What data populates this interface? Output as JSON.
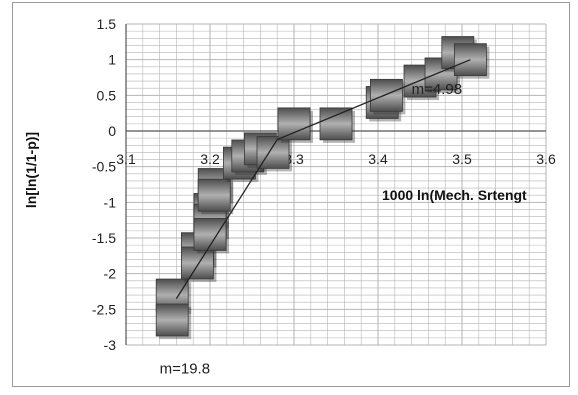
{
  "chart_data": {
    "type": "scatter",
    "xlabel": "1000 ln(Mech. Srtengt",
    "ylabel": "ln[ln(1/1-p)]",
    "xlim": [
      3.1,
      3.6
    ],
    "ylim": [
      -3,
      1.5
    ],
    "xticks": [
      "3.1",
      "3.2",
      "3.3",
      "3.4",
      "3.5",
      "3.6"
    ],
    "yticks": [
      "1.5",
      "1",
      "0.5",
      "0",
      "-0.5",
      "-1",
      "-1.5",
      "-2",
      "-2.5",
      "-3"
    ],
    "grid": true,
    "series": [
      {
        "points": [
          {
            "x": 3.155,
            "y": -2.3
          },
          {
            "x": 3.155,
            "y": -2.65
          },
          {
            "x": 3.185,
            "y": -1.65
          },
          {
            "x": 3.185,
            "y": -1.85
          },
          {
            "x": 3.2,
            "y": -1.1
          },
          {
            "x": 3.2,
            "y": -1.25
          },
          {
            "x": 3.2,
            "y": -1.45
          },
          {
            "x": 3.205,
            "y": -0.75
          },
          {
            "x": 3.205,
            "y": -0.9
          },
          {
            "x": 3.235,
            "y": -0.45
          },
          {
            "x": 3.245,
            "y": -0.35
          },
          {
            "x": 3.26,
            "y": -0.25
          },
          {
            "x": 3.275,
            "y": -0.3
          },
          {
            "x": 3.3,
            "y": 0.1
          },
          {
            "x": 3.35,
            "y": 0.1
          },
          {
            "x": 3.405,
            "y": 0.4
          },
          {
            "x": 3.41,
            "y": 0.5
          },
          {
            "x": 3.45,
            "y": 0.7
          },
          {
            "x": 3.475,
            "y": 0.8
          },
          {
            "x": 3.495,
            "y": 1.1
          },
          {
            "x": 3.51,
            "y": 1.0
          }
        ]
      }
    ],
    "trendlines": [
      {
        "x": [
          3.16,
          3.28
        ],
        "y": [
          -2.35,
          -0.12
        ]
      },
      {
        "x": [
          3.28,
          3.51
        ],
        "y": [
          -0.12,
          1.0
        ]
      }
    ],
    "annotations": [
      {
        "text": "m=4.98",
        "x": 3.44,
        "y": 0.52
      },
      {
        "text": "m=19.8",
        "x": 3.14,
        "y": -3.4
      }
    ],
    "colors": {
      "marker_dark": "#4d4d4d",
      "marker_light": "#b0b0b0",
      "line": "#222222",
      "grid": "#b4b4b4"
    }
  }
}
